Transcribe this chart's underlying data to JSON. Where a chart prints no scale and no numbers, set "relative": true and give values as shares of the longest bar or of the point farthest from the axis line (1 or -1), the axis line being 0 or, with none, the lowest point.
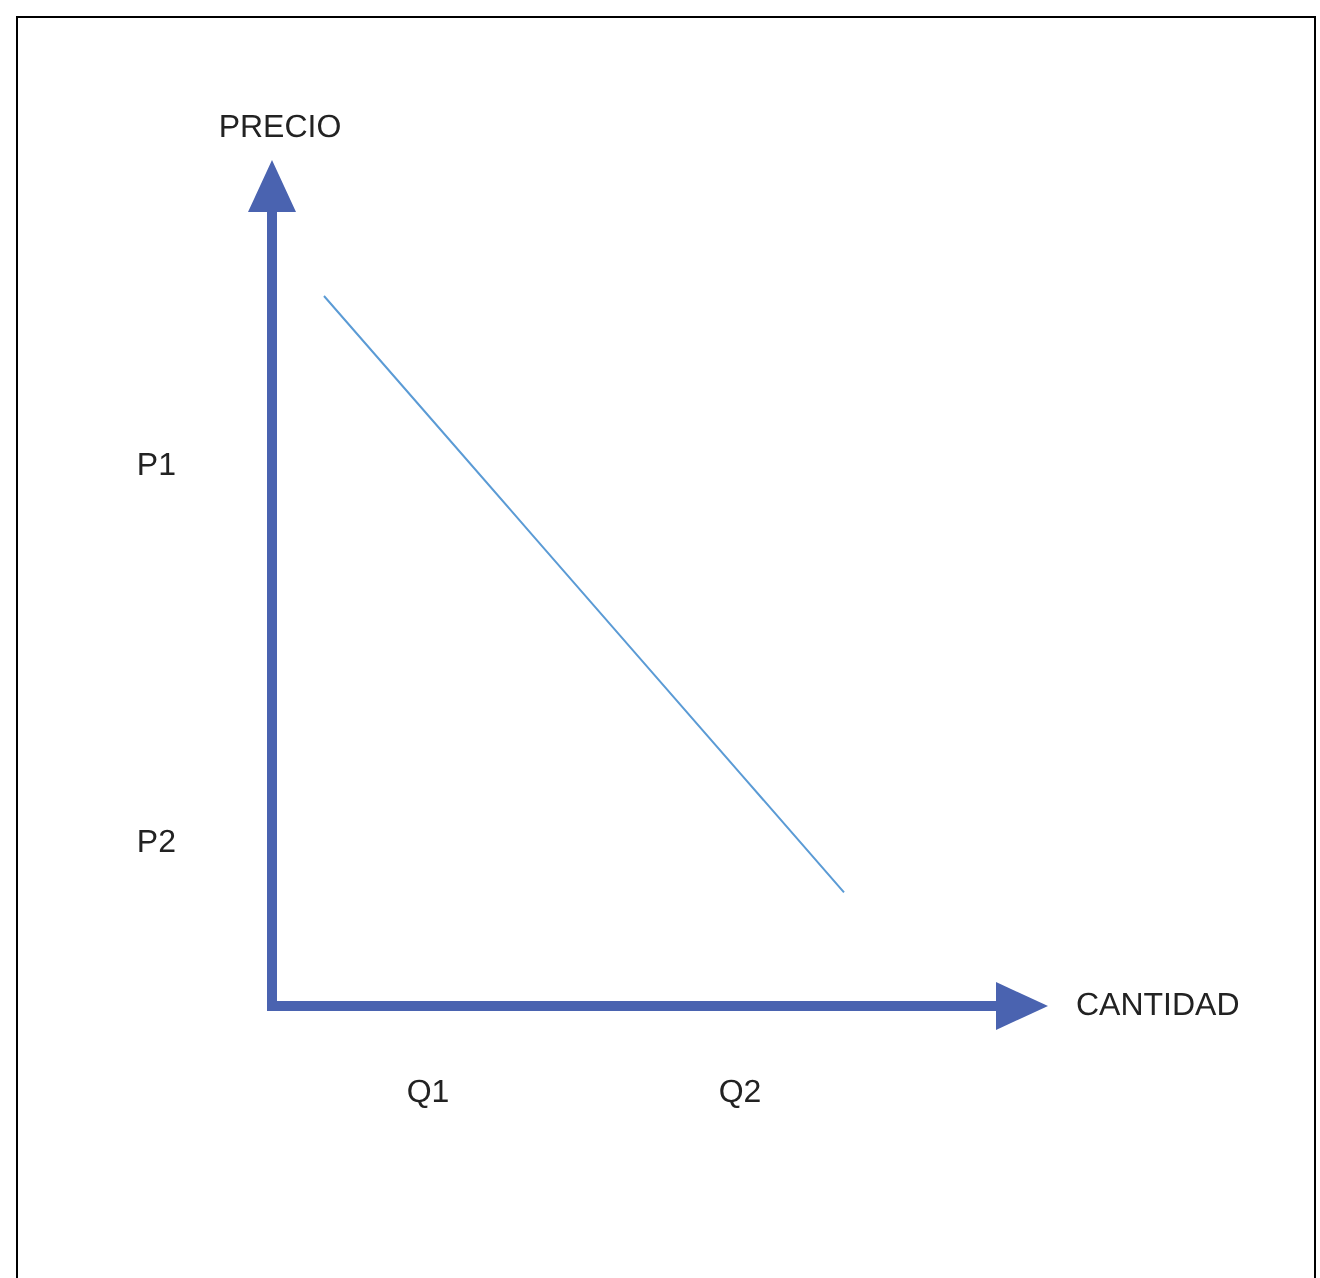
{
  "chart_data": {
    "type": "line",
    "xlabel": "CANTIDAD",
    "ylabel": "PRECIO",
    "relative": true,
    "categories": [
      null,
      "Q1",
      null,
      null,
      "Q2",
      null,
      null
    ],
    "series": [
      {
        "color": "#5b9bd5",
        "values": [
          1,
          0.832,
          0.664,
          0.496,
          0.328,
          0.16,
          null
        ]
      }
    ],
    "annotations": [
      "P1",
      "P2"
    ],
    "grid": false,
    "legend": false,
    "marker": "none",
    "line_style": "solid"
  }
}
